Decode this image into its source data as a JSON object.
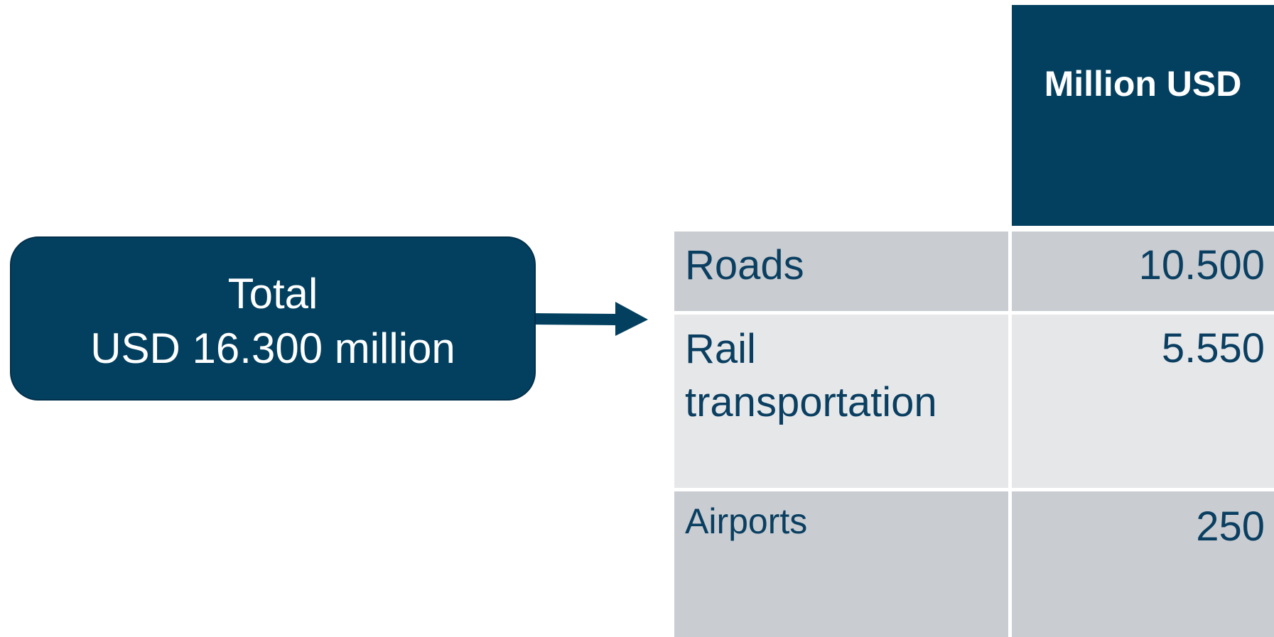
{
  "callout": {
    "lines": [
      "Total",
      "USD 16.300 million"
    ]
  },
  "table": {
    "header": "Million USD",
    "rows": [
      [
        "Roads",
        "10.500"
      ],
      [
        "Rail transportation",
        "5.550"
      ],
      [
        "Airports",
        "250"
      ]
    ]
  }
}
